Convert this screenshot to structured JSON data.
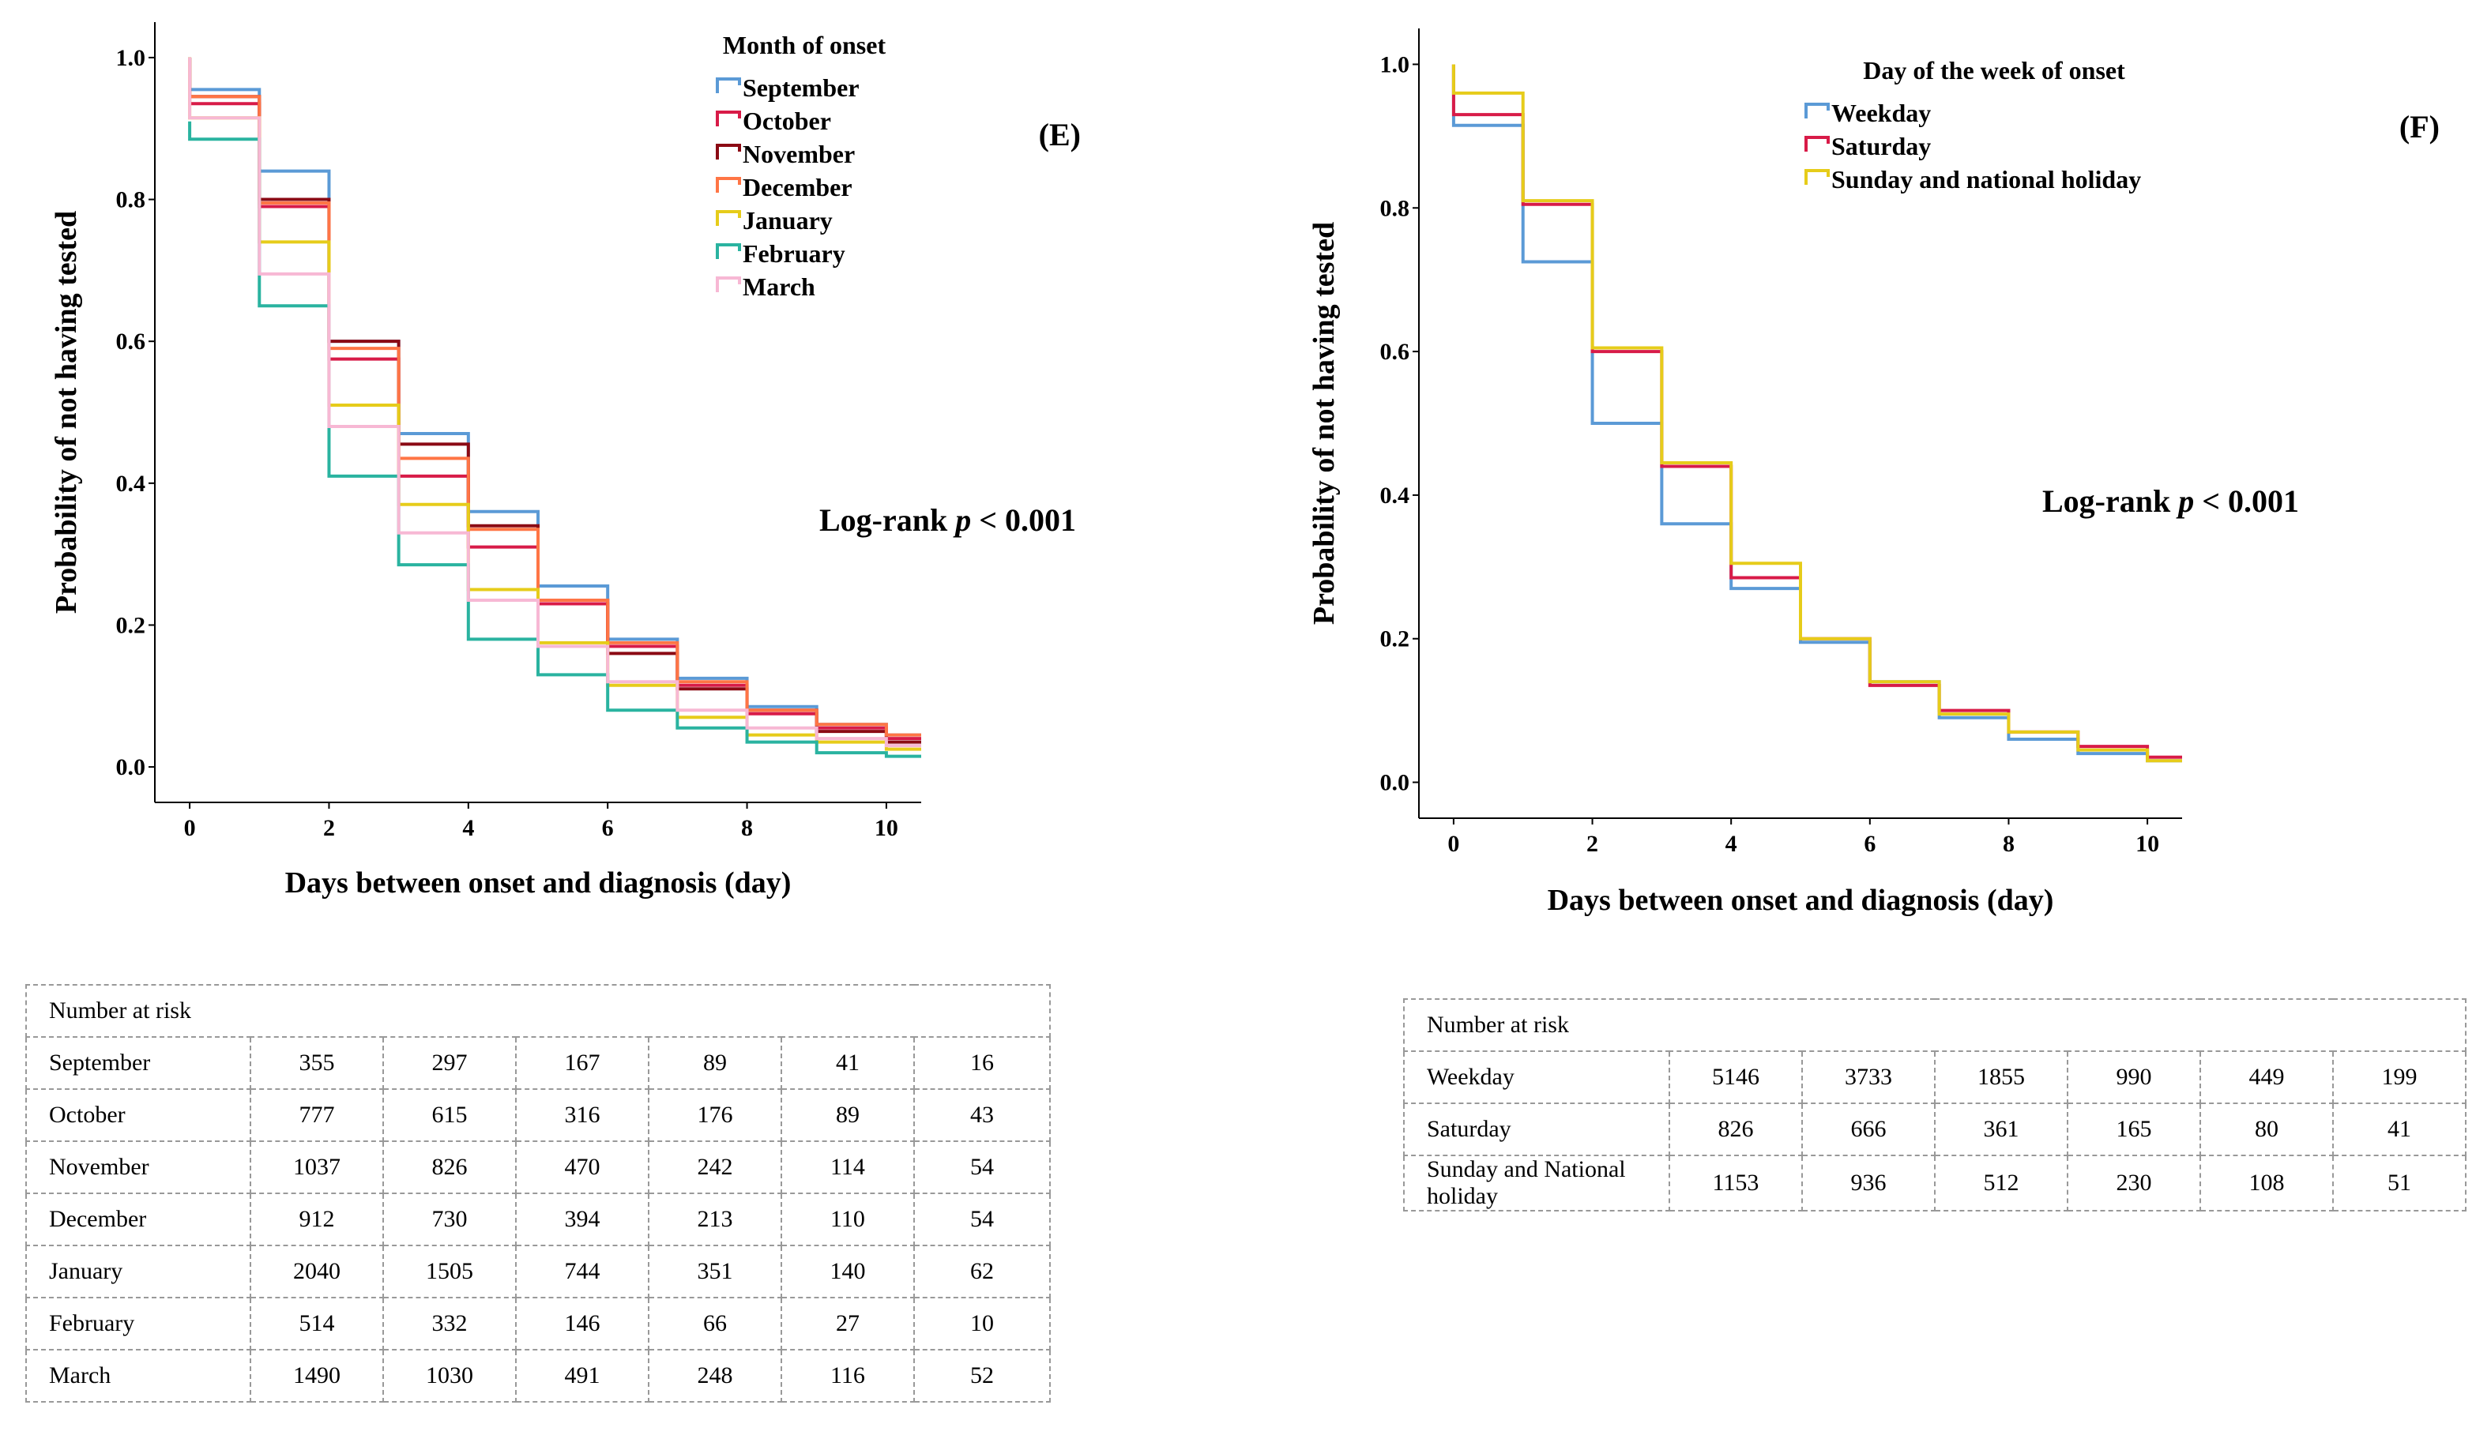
{
  "chart_data": [
    {
      "type": "line",
      "panel_label": "(E)",
      "xlabel": "Days between onset and diagnosis (day)",
      "ylabel": "Probability of not having tested",
      "xlim": [
        -0.5,
        10.5
      ],
      "ylim": [
        -0.05,
        1.05
      ],
      "x_ticks": [
        "0",
        "2",
        "4",
        "6",
        "8",
        "10"
      ],
      "y_ticks": [
        "0.0",
        "0.2",
        "0.4",
        "0.6",
        "0.8",
        "1.0"
      ],
      "legend_title": "Month of onset",
      "annotation": {
        "test": "Log-rank",
        "p_symbol": "p",
        "p_value": "< 0.001"
      },
      "series": [
        {
          "name": "September",
          "color": "#5b9ad6",
          "y0": 1.0,
          "values": [
            0.955,
            0.84,
            0.6,
            0.47,
            0.36,
            0.255,
            0.18,
            0.125,
            0.085,
            0.06,
            0.045
          ]
        },
        {
          "name": "October",
          "color": "#d81b48",
          "y0": 1.0,
          "values": [
            0.935,
            0.79,
            0.575,
            0.41,
            0.31,
            0.23,
            0.17,
            0.115,
            0.075,
            0.055,
            0.04
          ]
        },
        {
          "name": "November",
          "color": "#8b0a14",
          "y0": 1.0,
          "values": [
            0.945,
            0.8,
            0.6,
            0.455,
            0.34,
            0.235,
            0.16,
            0.11,
            0.08,
            0.05,
            0.035
          ]
        },
        {
          "name": "December",
          "color": "#ff7545",
          "y0": 1.0,
          "values": [
            0.945,
            0.795,
            0.59,
            0.435,
            0.335,
            0.235,
            0.175,
            0.12,
            0.08,
            0.06,
            0.045
          ]
        },
        {
          "name": "January",
          "color": "#e6cc1a",
          "y0": 1.0,
          "values": [
            0.915,
            0.74,
            0.51,
            0.37,
            0.25,
            0.175,
            0.115,
            0.07,
            0.045,
            0.035,
            0.025
          ]
        },
        {
          "name": "February",
          "color": "#2ab3a0",
          "y0": 0.91,
          "values": [
            0.885,
            0.65,
            0.41,
            0.285,
            0.18,
            0.13,
            0.08,
            0.055,
            0.035,
            0.02,
            0.015
          ]
        },
        {
          "name": "March",
          "color": "#f7b8d4",
          "y0": 1.0,
          "values": [
            0.915,
            0.695,
            0.48,
            0.33,
            0.235,
            0.17,
            0.12,
            0.08,
            0.055,
            0.04,
            0.03
          ]
        }
      ]
    },
    {
      "type": "line",
      "panel_label": "(F)",
      "xlabel": "Days between onset and diagnosis (day)",
      "ylabel": "Probability of not having tested",
      "xlim": [
        -0.5,
        10.5
      ],
      "ylim": [
        -0.05,
        1.05
      ],
      "x_ticks": [
        "0",
        "2",
        "4",
        "6",
        "8",
        "10"
      ],
      "y_ticks": [
        "0.0",
        "0.2",
        "0.4",
        "0.6",
        "0.8",
        "1.0"
      ],
      "legend_title": "Day of the week of onset",
      "annotation": {
        "test": "Log-rank",
        "p_symbol": "p",
        "p_value": "< 0.001"
      },
      "series": [
        {
          "name": "Weekday",
          "color": "#5b9ad6",
          "y0": 1.0,
          "values": [
            0.915,
            0.725,
            0.5,
            0.36,
            0.27,
            0.195,
            0.14,
            0.09,
            0.06,
            0.04,
            0.03
          ]
        },
        {
          "name": "Saturday",
          "color": "#d81b48",
          "y0": 1.0,
          "values": [
            0.93,
            0.805,
            0.6,
            0.44,
            0.285,
            0.2,
            0.135,
            0.1,
            0.07,
            0.05,
            0.035
          ]
        },
        {
          "name": "Sunday and national holiday",
          "color": "#e6cc1a",
          "y0": 1.0,
          "values": [
            0.96,
            0.81,
            0.605,
            0.445,
            0.305,
            0.2,
            0.14,
            0.095,
            0.07,
            0.045,
            0.03
          ]
        }
      ]
    }
  ],
  "tables": [
    {
      "header": "Number at risk",
      "rows": [
        {
          "label": "September",
          "values": [
            "355",
            "297",
            "167",
            "89",
            "41",
            "16"
          ]
        },
        {
          "label": "October",
          "values": [
            "777",
            "615",
            "316",
            "176",
            "89",
            "43"
          ]
        },
        {
          "label": "November",
          "values": [
            "1037",
            "826",
            "470",
            "242",
            "114",
            "54"
          ]
        },
        {
          "label": "December",
          "values": [
            "912",
            "730",
            "394",
            "213",
            "110",
            "54"
          ]
        },
        {
          "label": "January",
          "values": [
            "2040",
            "1505",
            "744",
            "351",
            "140",
            "62"
          ]
        },
        {
          "label": "February",
          "values": [
            "514",
            "332",
            "146",
            "66",
            "27",
            "10"
          ]
        },
        {
          "label": "March",
          "values": [
            "1490",
            "1030",
            "491",
            "248",
            "116",
            "52"
          ]
        }
      ]
    },
    {
      "header": "Number at risk",
      "rows": [
        {
          "label": "Weekday",
          "values": [
            "5146",
            "3733",
            "1855",
            "990",
            "449",
            "199"
          ]
        },
        {
          "label": "Saturday",
          "values": [
            "826",
            "666",
            "361",
            "165",
            "80",
            "41"
          ]
        },
        {
          "label": "Sunday and National holiday",
          "values": [
            "1153",
            "936",
            "512",
            "230",
            "108",
            "51"
          ]
        }
      ]
    }
  ]
}
